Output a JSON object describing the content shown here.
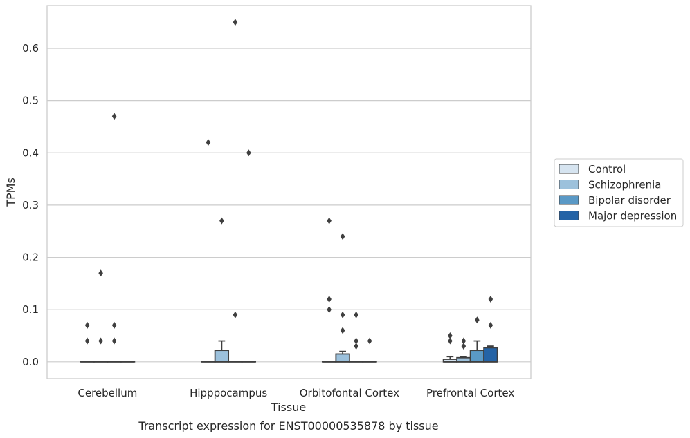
{
  "chart_data": {
    "type": "box",
    "title": "Transcript expression for ENST00000535878 by tissue",
    "xlabel": "Tissue",
    "ylabel": "TPMs",
    "ylim": [
      -0.032,
      0.682
    ],
    "yticks": [
      "0.0",
      "0.1",
      "0.2",
      "0.3",
      "0.4",
      "0.5",
      "0.6"
    ],
    "ytick_values": [
      0.0,
      0.1,
      0.2,
      0.3,
      0.4,
      0.5,
      0.6
    ],
    "grid": true,
    "legend_position": "right",
    "categories": [
      "Cerebellum",
      "Hipppocampus",
      "Orbitofontal Cortex",
      "Prefrontal Cortex"
    ],
    "series": [
      {
        "name": "Control",
        "color": "#d6e4f0",
        "boxes": [
          {
            "q1": 0,
            "median": 0,
            "q3": 0,
            "whisker_low": 0,
            "whisker_high": 0,
            "outliers": [
              0.07,
              0.04
            ]
          },
          {
            "q1": 0,
            "median": 0,
            "q3": 0,
            "whisker_low": 0,
            "whisker_high": 0,
            "outliers": [
              0.42
            ]
          },
          {
            "q1": 0,
            "median": 0,
            "q3": 0,
            "whisker_low": 0,
            "whisker_high": 0,
            "outliers": [
              0.27,
              0.12,
              0.1
            ]
          },
          {
            "q1": 0,
            "median": 0,
            "q3": 0.005,
            "whisker_low": 0,
            "whisker_high": 0.01,
            "outliers": [
              0.05,
              0.04
            ]
          }
        ]
      },
      {
        "name": "Schizophrenia",
        "color": "#9cc1dc",
        "boxes": [
          {
            "q1": 0,
            "median": 0,
            "q3": 0,
            "whisker_low": 0,
            "whisker_high": 0,
            "outliers": [
              0.17,
              0.04
            ]
          },
          {
            "q1": 0,
            "median": 0,
            "q3": 0.022,
            "whisker_low": 0,
            "whisker_high": 0.04,
            "outliers": [
              0.27
            ]
          },
          {
            "q1": 0,
            "median": 0,
            "q3": 0.015,
            "whisker_low": 0,
            "whisker_high": 0.02,
            "outliers": [
              0.24,
              0.09,
              0.06
            ]
          },
          {
            "q1": 0,
            "median": 0,
            "q3": 0.008,
            "whisker_low": 0,
            "whisker_high": 0.01,
            "outliers": [
              0.04,
              0.03
            ]
          }
        ]
      },
      {
        "name": "Bipolar disorder",
        "color": "#5a99c6",
        "boxes": [
          {
            "q1": 0,
            "median": 0,
            "q3": 0,
            "whisker_low": 0,
            "whisker_high": 0,
            "outliers": [
              0.47,
              0.07,
              0.04
            ]
          },
          {
            "q1": 0,
            "median": 0,
            "q3": 0,
            "whisker_low": 0,
            "whisker_high": 0,
            "outliers": [
              0.65,
              0.09
            ]
          },
          {
            "q1": 0,
            "median": 0,
            "q3": 0,
            "whisker_low": 0,
            "whisker_high": 0,
            "outliers": [
              0.09,
              0.04,
              0.03
            ]
          },
          {
            "q1": 0,
            "median": 0,
            "q3": 0.022,
            "whisker_low": 0,
            "whisker_high": 0.04,
            "outliers": [
              0.08
            ]
          }
        ]
      },
      {
        "name": "Major depression",
        "color": "#2463a6",
        "boxes": [
          {
            "q1": 0,
            "median": 0,
            "q3": 0,
            "whisker_low": 0,
            "whisker_high": 0,
            "outliers": []
          },
          {
            "q1": 0,
            "median": 0,
            "q3": 0,
            "whisker_low": 0,
            "whisker_high": 0,
            "outliers": [
              0.4
            ]
          },
          {
            "q1": 0,
            "median": 0,
            "q3": 0,
            "whisker_low": 0,
            "whisker_high": 0,
            "outliers": [
              0.04
            ]
          },
          {
            "q1": 0,
            "median": 0,
            "q3": 0.027,
            "whisker_low": 0,
            "whisker_high": 0.03,
            "outliers": [
              0.12,
              0.07
            ]
          }
        ]
      }
    ]
  }
}
